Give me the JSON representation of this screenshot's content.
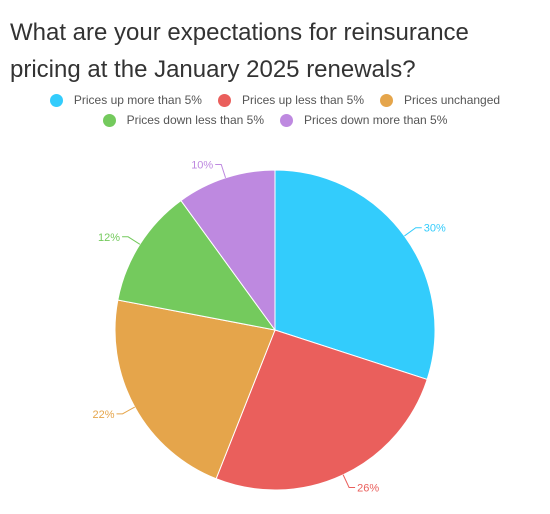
{
  "title": "What are your expectations for reinsurance pricing at the January 2025 renewals?",
  "colors": {
    "up_more": "#33ccfc",
    "up_less": "#ea5f5c",
    "unchanged": "#e5a54b",
    "down_less": "#74ca5d",
    "down_more": "#be89e0"
  },
  "chart_data": {
    "type": "pie",
    "title": "What are your expectations for reinsurance pricing at the January 2025 renewals?",
    "legend_position": "top",
    "slices": [
      {
        "label": "Prices up more than 5%",
        "value": 30,
        "display": "30%",
        "color": "#33ccfc"
      },
      {
        "label": "Prices up less than 5%",
        "value": 26,
        "display": "26%",
        "color": "#ea5f5c"
      },
      {
        "label": "Prices unchanged",
        "value": 22,
        "display": "22%",
        "color": "#e5a54b"
      },
      {
        "label": "Prices down less than 5%",
        "value": 12,
        "display": "12%",
        "color": "#74ca5d"
      },
      {
        "label": "Prices down more than 5%",
        "value": 10,
        "display": "10%",
        "color": "#be89e0"
      }
    ]
  }
}
